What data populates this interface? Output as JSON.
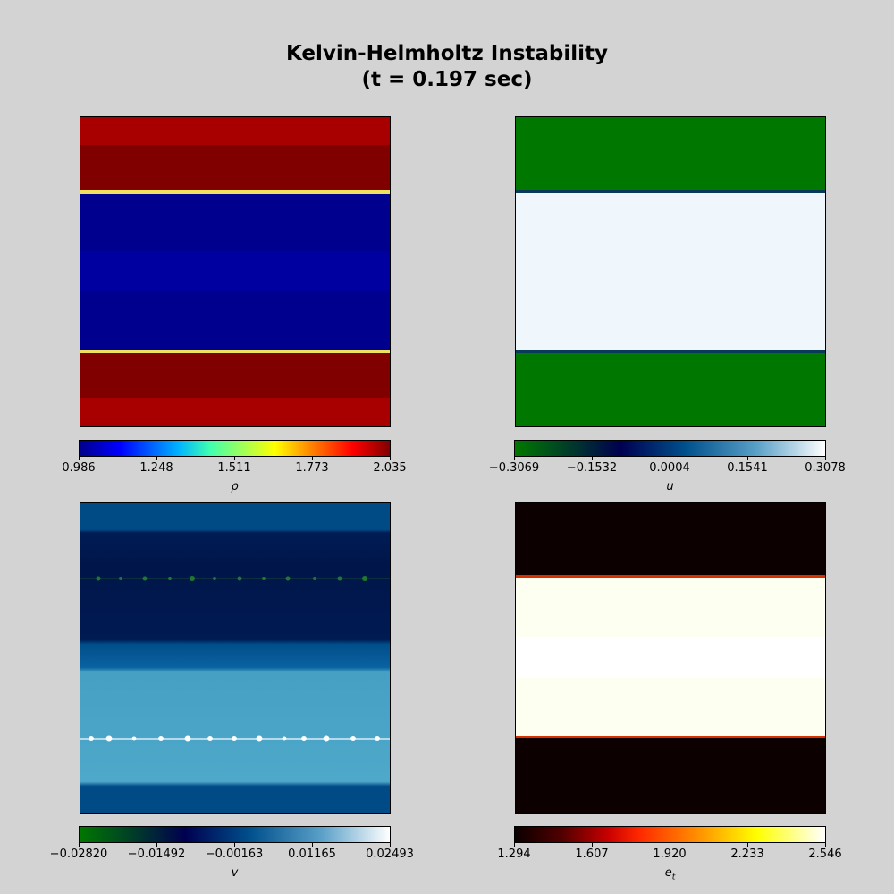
{
  "figure": {
    "title_line1": "Kelvin-Helmholtz Instability",
    "title_line2": "(t = 0.197 sec)"
  },
  "chart_data": [
    {
      "type": "heatmap",
      "variable": "rho",
      "colorbar_label": "ρ",
      "colormap": "jet",
      "ticks": [
        "0.986",
        "1.248",
        "1.511",
        "1.773",
        "2.035"
      ],
      "vmin": 0.986,
      "vmax": 2.035,
      "bands": [
        {
          "from": 0.0,
          "to": 0.09,
          "value": 1.92
        },
        {
          "from": 0.09,
          "to": 0.24,
          "value": 2.035
        },
        {
          "from": 0.24,
          "to": 0.25,
          "value": 1.55
        },
        {
          "from": 0.25,
          "to": 0.75,
          "value": 0.986
        },
        {
          "from": 0.75,
          "to": 0.76,
          "value": 1.55
        },
        {
          "from": 0.76,
          "to": 0.91,
          "value": 2.035
        },
        {
          "from": 0.91,
          "to": 1.0,
          "value": 1.92
        }
      ],
      "colorbar_stops": [
        "#00008b",
        "#0000ff",
        "#00ffff",
        "#ffff00",
        "#ff8000",
        "#ff0000",
        "#800000"
      ]
    },
    {
      "type": "heatmap",
      "variable": "u",
      "colorbar_label": "u",
      "colormap": "ocean",
      "ticks": [
        "−0.3069",
        "−0.1532",
        "0.0004",
        "0.1541",
        "0.3078"
      ],
      "vmin": -0.3069,
      "vmax": 0.3078,
      "bands": [
        {
          "from": 0.0,
          "to": 0.24,
          "value": -0.3069
        },
        {
          "from": 0.24,
          "to": 0.245,
          "value": 0.0004
        },
        {
          "from": 0.245,
          "to": 0.755,
          "value": 0.3078
        },
        {
          "from": 0.755,
          "to": 0.76,
          "value": 0.0004
        },
        {
          "from": 0.76,
          "to": 1.0,
          "value": -0.3069
        }
      ],
      "colorbar_stops": [
        "#007800",
        "#003a2a",
        "#000050",
        "#00508c",
        "#5aa0c8",
        "#ffffff"
      ]
    },
    {
      "type": "heatmap",
      "variable": "v",
      "colorbar_label": "v",
      "colormap": "ocean",
      "ticks": [
        "−0.02820",
        "−0.01492",
        "−0.00163",
        "0.01165",
        "0.02493"
      ],
      "vmin": -0.0282,
      "vmax": 0.02493,
      "bands": [
        {
          "from": 0.0,
          "to": 0.09,
          "value": 0.004
        },
        {
          "from": 0.09,
          "to": 0.45,
          "value": -0.01
        },
        {
          "from": 0.45,
          "to": 0.54,
          "value": 0.004
        },
        {
          "from": 0.54,
          "to": 0.91,
          "value": 0.012
        },
        {
          "from": 0.91,
          "to": 1.0,
          "value": 0.004
        }
      ],
      "colorbar_stops": [
        "#007800",
        "#003a2a",
        "#000050",
        "#00508c",
        "#5aa0c8",
        "#ffffff"
      ]
    },
    {
      "type": "heatmap",
      "variable": "e_t",
      "colorbar_label": "e",
      "colorbar_label_sub": "t",
      "colormap": "hot",
      "ticks": [
        "1.294",
        "1.607",
        "1.920",
        "2.233",
        "2.546"
      ],
      "vmin": 1.294,
      "vmax": 2.546,
      "bands": [
        {
          "from": 0.0,
          "to": 0.24,
          "value": 1.294
        },
        {
          "from": 0.24,
          "to": 0.245,
          "value": 1.75
        },
        {
          "from": 0.245,
          "to": 0.755,
          "value": 2.546
        },
        {
          "from": 0.755,
          "to": 0.76,
          "value": 1.75
        },
        {
          "from": 0.76,
          "to": 1.0,
          "value": 1.294
        }
      ],
      "colorbar_stops": [
        "#0a0000",
        "#500000",
        "#c80000",
        "#ff3c00",
        "#ff9600",
        "#ffff00",
        "#ffffff"
      ]
    }
  ]
}
